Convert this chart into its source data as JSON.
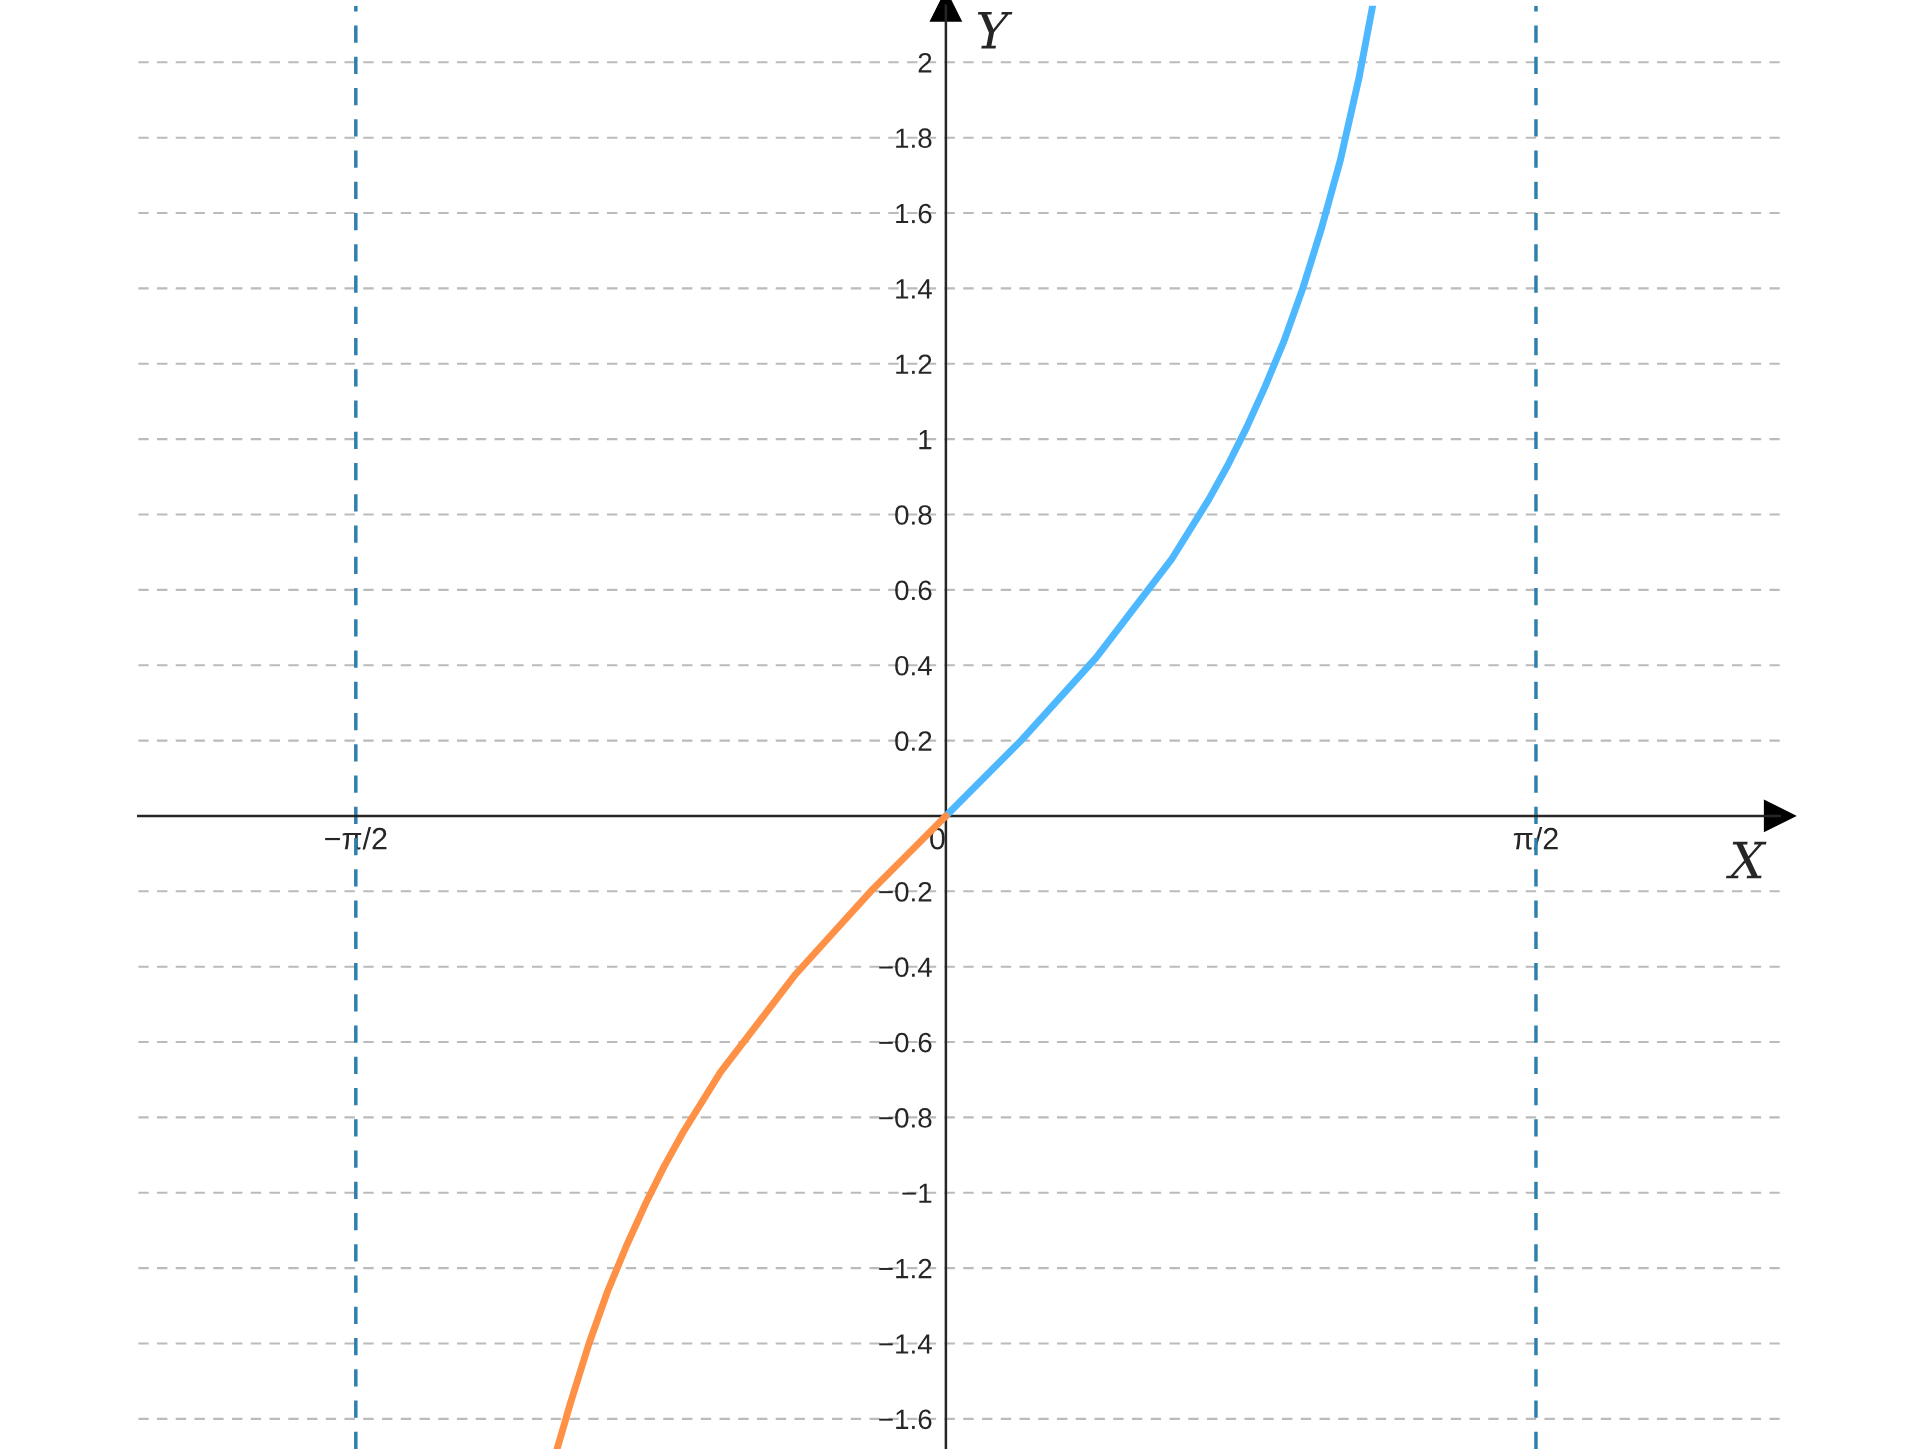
{
  "chart_data": {
    "type": "line",
    "xlabel": "X",
    "ylabel": "Y",
    "series": [
      {
        "color": "#4db8ff",
        "x": [
          0,
          0.1,
          0.2,
          0.3,
          0.4,
          0.5,
          0.6,
          0.7,
          0.75,
          0.8,
          0.85,
          0.9,
          0.95,
          1.0,
          1.05,
          1.1,
          1.136
        ],
        "values": [
          0,
          0.1,
          0.2,
          0.31,
          0.42,
          0.55,
          0.68,
          0.84,
          0.93,
          1.03,
          1.14,
          1.26,
          1.4,
          1.56,
          1.74,
          1.96,
          2.15
        ]
      },
      {
        "color": "#ff9147",
        "x": [
          -1.035,
          -1.0,
          -0.95,
          -0.9,
          -0.85,
          -0.8,
          -0.75,
          -0.7,
          -0.6,
          -0.5,
          -0.4,
          -0.3,
          -0.2,
          -0.1,
          0
        ],
        "values": [
          -1.68,
          -1.56,
          -1.4,
          -1.26,
          -1.14,
          -1.03,
          -0.93,
          -0.84,
          -0.68,
          -0.55,
          -0.42,
          -0.31,
          -0.2,
          -0.1,
          0
        ]
      }
    ],
    "xlim": [
      -2.15,
      2.22
    ],
    "ylim": [
      -1.68,
      2.15
    ],
    "xticks": [
      {
        "value": -1.5708,
        "label": "−π/2"
      },
      {
        "value": 0,
        "label": "0"
      },
      {
        "value": 1.5708,
        "label": "π/2"
      }
    ],
    "yticks": [
      {
        "value": -1.6,
        "label": "−1.6"
      },
      {
        "value": -1.4,
        "label": "−1.4"
      },
      {
        "value": -1.2,
        "label": "−1.2"
      },
      {
        "value": -1,
        "label": "−1"
      },
      {
        "value": -0.8,
        "label": "−0.8"
      },
      {
        "value": -0.6,
        "label": "−0.6"
      },
      {
        "value": -0.4,
        "label": "−0.4"
      },
      {
        "value": -0.2,
        "label": "−0.2"
      },
      0.2,
      0.4,
      0.6,
      0.8,
      1,
      1.2,
      1.4,
      1.6,
      1.8,
      2
    ],
    "ref_lines": [
      {
        "axis": "x",
        "value": -1.5708,
        "color": "#2e7fad",
        "line_style": "dashed"
      },
      {
        "axis": "x",
        "value": 1.5708,
        "color": "#2e7fad",
        "line_style": "dashed"
      }
    ],
    "grid": "y",
    "line_style": "solid",
    "marker": "none"
  }
}
